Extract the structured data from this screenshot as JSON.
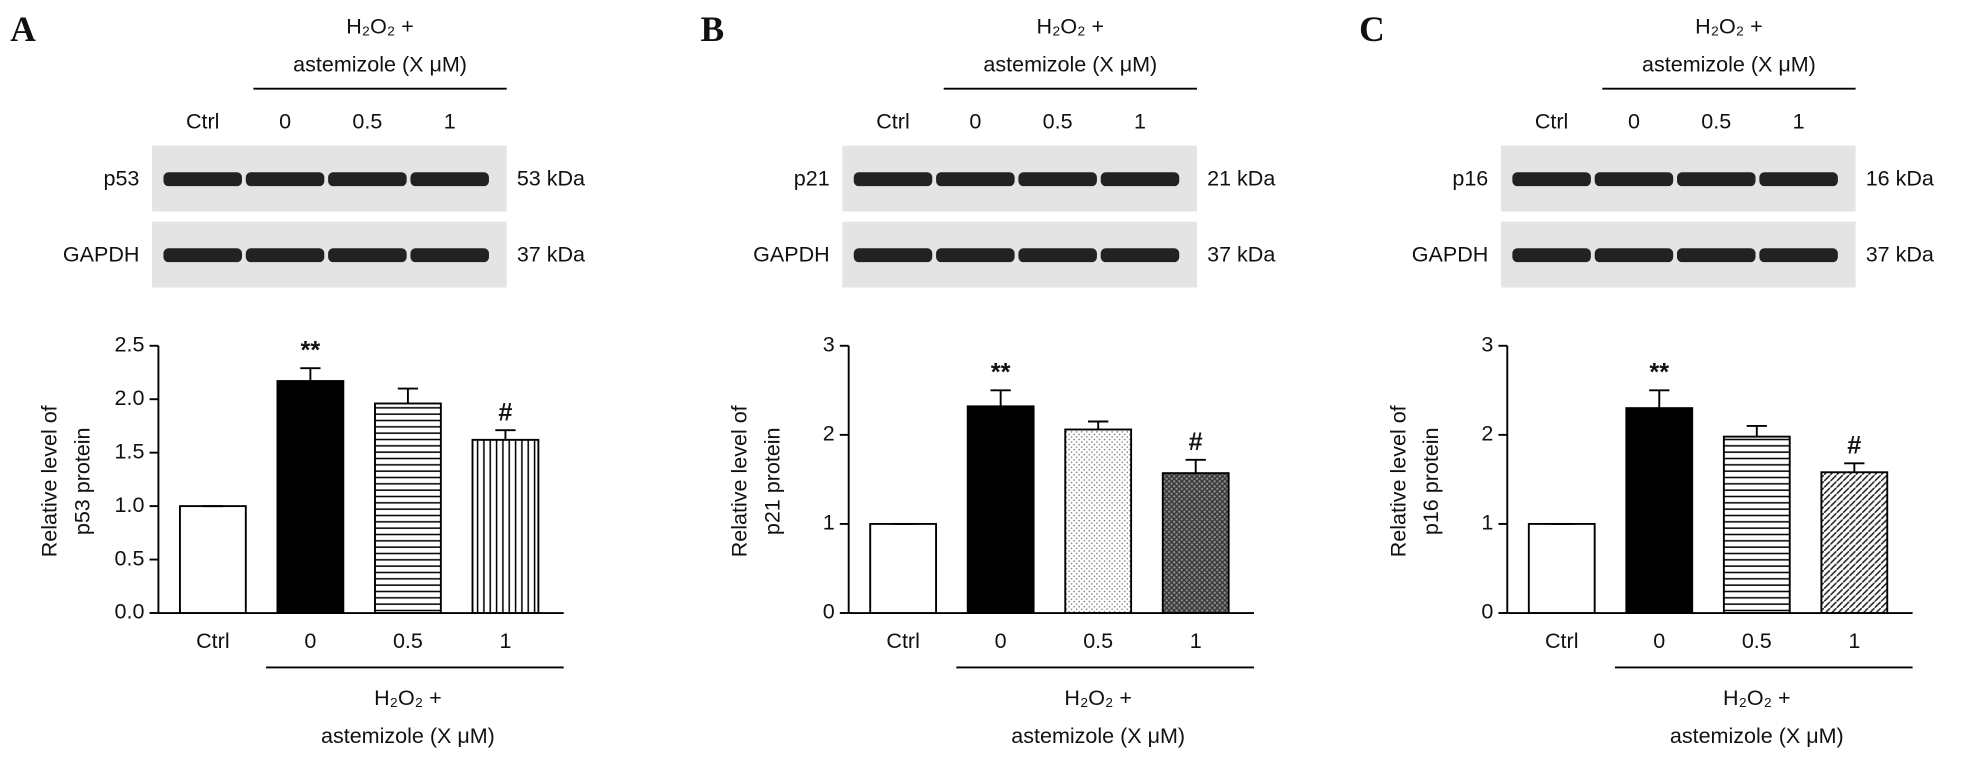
{
  "chart_data": [
    {
      "type": "bar",
      "panel": "A",
      "blot": {
        "header": [
          "H₂O₂ +",
          "astemizole (X μM)"
        ],
        "lanes": [
          "Ctrl",
          "0",
          "0.5",
          "1"
        ],
        "rows": [
          {
            "label": "p53",
            "size": "53 kDa"
          },
          {
            "label": "GAPDH",
            "size": "37 kDa"
          }
        ]
      },
      "ylabel": [
        "Relative level of",
        "p53 protein"
      ],
      "categories": [
        "Ctrl",
        "0",
        "0.5",
        "1"
      ],
      "group_label": [
        "H₂O₂ +",
        "astemizole (X μM)"
      ],
      "values": [
        1.0,
        2.17,
        1.96,
        1.62
      ],
      "errors": [
        0,
        0.12,
        0.14,
        0.09
      ],
      "annotations": [
        {
          "index": 1,
          "text": "**"
        },
        {
          "index": 3,
          "text": "#"
        }
      ],
      "fills": [
        "white",
        "black",
        "hlines",
        "vlines"
      ],
      "ylim": [
        0,
        2.5
      ],
      "yticks": [
        {
          "value": 0,
          "label": "0.0"
        },
        {
          "value": 0.5,
          "label": "0.5"
        },
        {
          "value": 1,
          "label": "1.0"
        },
        {
          "value": 1.5,
          "label": "1.5"
        },
        {
          "value": 2,
          "label": "2.0"
        },
        {
          "value": 2.5,
          "label": "2.5"
        }
      ]
    },
    {
      "type": "bar",
      "panel": "B",
      "blot": {
        "header": [
          "H₂O₂ +",
          "astemizole (X μM)"
        ],
        "lanes": [
          "Ctrl",
          "0",
          "0.5",
          "1"
        ],
        "rows": [
          {
            "label": "p21",
            "size": "21 kDa"
          },
          {
            "label": "GAPDH",
            "size": "37 kDa"
          }
        ]
      },
      "ylabel": [
        "Relative level of",
        "p21 protein"
      ],
      "categories": [
        "Ctrl",
        "0",
        "0.5",
        "1"
      ],
      "group_label": [
        "H₂O₂ +",
        "astemizole (X μM)"
      ],
      "values": [
        1.0,
        2.32,
        2.06,
        1.57
      ],
      "errors": [
        0,
        0.18,
        0.09,
        0.15
      ],
      "annotations": [
        {
          "index": 1,
          "text": "**"
        },
        {
          "index": 3,
          "text": "#"
        }
      ],
      "fills": [
        "white",
        "black",
        "dots",
        "crosshatch"
      ],
      "ylim": [
        0,
        3
      ],
      "yticks": [
        0,
        1,
        2,
        3
      ]
    },
    {
      "type": "bar",
      "panel": "C",
      "blot": {
        "header": [
          "H₂O₂ +",
          "astemizole (X μM)"
        ],
        "lanes": [
          "Ctrl",
          "0",
          "0.5",
          "1"
        ],
        "rows": [
          {
            "label": "p16",
            "size": "16 kDa"
          },
          {
            "label": "GAPDH",
            "size": "37 kDa"
          }
        ]
      },
      "ylabel": [
        "Relative level of",
        "p16 protein"
      ],
      "categories": [
        "Ctrl",
        "0",
        "0.5",
        "1"
      ],
      "group_label": [
        "H₂O₂ +",
        "astemizole (X μM)"
      ],
      "values": [
        1.0,
        2.3,
        1.98,
        1.58
      ],
      "errors": [
        0,
        0.2,
        0.12,
        0.1
      ],
      "annotations": [
        {
          "index": 1,
          "text": "**"
        },
        {
          "index": 3,
          "text": "#"
        }
      ],
      "fills": [
        "white",
        "black",
        "hlines",
        "diag"
      ],
      "ylim": [
        0,
        3
      ],
      "yticks": [
        0,
        1,
        2,
        3
      ]
    }
  ]
}
